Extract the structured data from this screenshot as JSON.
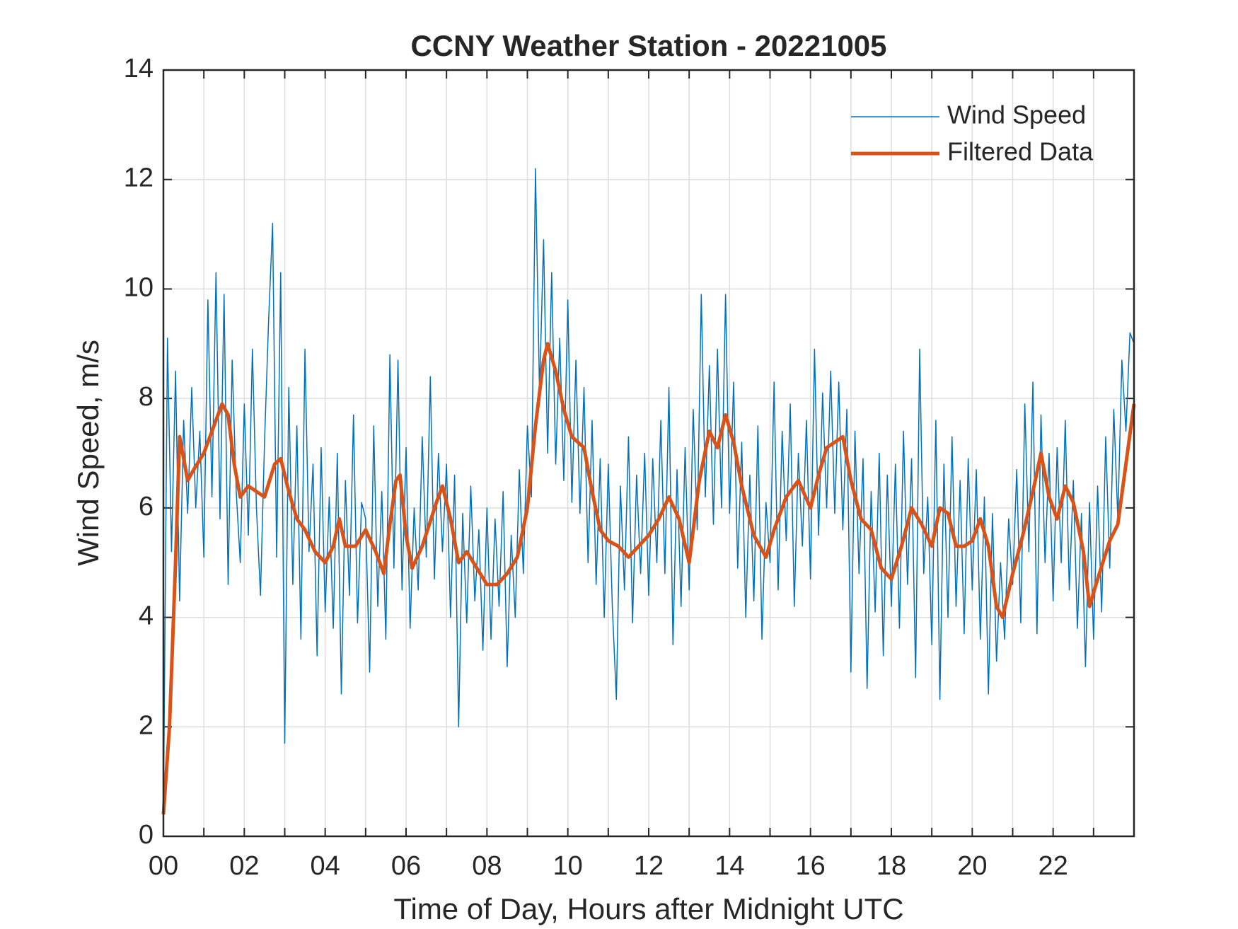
{
  "chart_data": {
    "type": "line",
    "title": "CCNY Weather Station - 20221005",
    "xlabel": "Time of Day, Hours after Midnight UTC",
    "ylabel": "Wind Speed, m/s",
    "xlim": [
      0,
      24
    ],
    "ylim": [
      0,
      14
    ],
    "xticks": [
      {
        "value": 0,
        "label": "00"
      },
      {
        "value": 2,
        "label": "02"
      },
      {
        "value": 4,
        "label": "04"
      },
      {
        "value": 6,
        "label": "06"
      },
      {
        "value": 8,
        "label": "08"
      },
      {
        "value": 10,
        "label": "10"
      },
      {
        "value": 12,
        "label": "12"
      },
      {
        "value": 14,
        "label": "14"
      },
      {
        "value": 16,
        "label": "16"
      },
      {
        "value": 18,
        "label": "18"
      },
      {
        "value": 20,
        "label": "20"
      },
      {
        "value": 22,
        "label": "22"
      }
    ],
    "x_minor_ticks": [
      1,
      3,
      5,
      7,
      9,
      11,
      13,
      15,
      17,
      19,
      21,
      23
    ],
    "yticks": [
      0,
      2,
      4,
      6,
      8,
      10,
      12,
      14
    ],
    "grid": true,
    "legend": "northeast",
    "series": [
      {
        "name": "Wind Speed",
        "color": "#0072BD",
        "width": 1.5,
        "x": [
          0,
          0.1,
          0.2,
          0.3,
          0.4,
          0.5,
          0.6,
          0.7,
          0.8,
          0.9,
          1,
          1.1,
          1.2,
          1.3,
          1.4,
          1.5,
          1.6,
          1.7,
          1.8,
          1.9,
          2,
          2.1,
          2.2,
          2.3,
          2.4,
          2.5,
          2.6,
          2.7,
          2.8,
          2.9,
          3,
          3.1,
          3.2,
          3.3,
          3.4,
          3.5,
          3.6,
          3.7,
          3.8,
          3.9,
          4,
          4.1,
          4.2,
          4.3,
          4.4,
          4.5,
          4.6,
          4.7,
          4.8,
          4.9,
          5,
          5.1,
          5.2,
          5.3,
          5.4,
          5.5,
          5.6,
          5.7,
          5.8,
          5.9,
          6,
          6.1,
          6.2,
          6.3,
          6.4,
          6.5,
          6.6,
          6.7,
          6.8,
          6.9,
          7,
          7.1,
          7.2,
          7.3,
          7.4,
          7.5,
          7.6,
          7.7,
          7.8,
          7.9,
          8,
          8.1,
          8.2,
          8.3,
          8.4,
          8.5,
          8.6,
          8.7,
          8.8,
          8.9,
          9,
          9.1,
          9.2,
          9.3,
          9.4,
          9.5,
          9.6,
          9.7,
          9.8,
          9.9,
          10,
          10.1,
          10.2,
          10.3,
          10.4,
          10.5,
          10.6,
          10.7,
          10.8,
          10.9,
          11,
          11.1,
          11.2,
          11.3,
          11.4,
          11.5,
          11.6,
          11.7,
          11.8,
          11.9,
          12,
          12.1,
          12.2,
          12.3,
          12.4,
          12.5,
          12.6,
          12.7,
          12.8,
          12.9,
          13,
          13.1,
          13.2,
          13.3,
          13.4,
          13.5,
          13.6,
          13.7,
          13.8,
          13.9,
          14,
          14.1,
          14.2,
          14.3,
          14.4,
          14.5,
          14.6,
          14.7,
          14.8,
          14.9,
          15,
          15.1,
          15.2,
          15.3,
          15.4,
          15.5,
          15.6,
          15.7,
          15.8,
          15.9,
          16,
          16.1,
          16.2,
          16.3,
          16.4,
          16.5,
          16.6,
          16.7,
          16.8,
          16.9,
          17,
          17.1,
          17.2,
          17.3,
          17.4,
          17.5,
          17.6,
          17.7,
          17.8,
          17.9,
          18,
          18.1,
          18.2,
          18.3,
          18.4,
          18.5,
          18.6,
          18.7,
          18.8,
          18.9,
          19,
          19.1,
          19.2,
          19.3,
          19.4,
          19.5,
          19.6,
          19.7,
          19.8,
          19.9,
          20,
          20.1,
          20.2,
          20.3,
          20.4,
          20.5,
          20.6,
          20.7,
          20.8,
          20.9,
          21,
          21.1,
          21.2,
          21.3,
          21.4,
          21.5,
          21.6,
          21.7,
          21.8,
          21.9,
          22,
          22.1,
          22.2,
          22.3,
          22.4,
          22.5,
          22.6,
          22.7,
          22.8,
          22.9,
          23,
          23.1,
          23.2,
          23.3,
          23.4,
          23.5,
          23.6,
          23.7,
          23.8,
          23.9,
          24
        ],
        "values": [
          0.4,
          9.1,
          5.2,
          8.5,
          4.3,
          7.6,
          5.9,
          8.2,
          6.0,
          7.4,
          5.1,
          9.8,
          6.2,
          10.3,
          5.8,
          9.9,
          4.6,
          8.7,
          6.3,
          5.0,
          7.9,
          5.5,
          8.9,
          6.0,
          4.4,
          7.2,
          9.4,
          11.2,
          5.1,
          10.3,
          1.7,
          8.2,
          4.6,
          7.5,
          3.6,
          8.9,
          5.2,
          6.8,
          3.3,
          7.1,
          4.1,
          6.2,
          3.8,
          7.0,
          2.6,
          6.5,
          4.4,
          7.7,
          3.9,
          6.1,
          5.8,
          3.0,
          7.5,
          4.2,
          6.3,
          3.6,
          8.8,
          4.9,
          8.7,
          4.5,
          7.1,
          3.8,
          6.0,
          4.5,
          7.3,
          5.1,
          8.4,
          4.7,
          7.0,
          5.2,
          6.8,
          4.0,
          6.6,
          2.0,
          5.9,
          3.9,
          6.4,
          4.3,
          5.6,
          3.4,
          6.0,
          3.6,
          5.8,
          4.2,
          6.3,
          3.1,
          5.5,
          4.0,
          6.7,
          4.8,
          7.5,
          6.2,
          12.2,
          8.1,
          10.9,
          7.0,
          10.3,
          6.8,
          9.1,
          6.5,
          9.8,
          6.1,
          8.7,
          5.9,
          8.2,
          5.0,
          7.6,
          4.6,
          6.9,
          4.0,
          6.8,
          4.2,
          2.5,
          6.4,
          4.5,
          7.3,
          3.9,
          6.6,
          4.8,
          7.0,
          4.4,
          6.9,
          5.0,
          7.6,
          4.8,
          8.2,
          3.5,
          6.7,
          4.2,
          7.1,
          4.5,
          7.8,
          5.6,
          9.9,
          6.2,
          8.6,
          5.7,
          8.9,
          6.0,
          9.9,
          5.9,
          8.3,
          4.9,
          7.2,
          4.0,
          6.6,
          4.3,
          7.5,
          3.6,
          6.1,
          5.0,
          8.3,
          4.5,
          7.4,
          5.4,
          7.9,
          4.2,
          7.0,
          5.3,
          7.6,
          4.7,
          8.9,
          5.5,
          8.1,
          6.0,
          8.5,
          5.9,
          8.3,
          5.6,
          7.8,
          3.0,
          7.4,
          4.8,
          6.9,
          2.7,
          6.3,
          4.1,
          7.0,
          3.3,
          6.6,
          4.2,
          6.8,
          3.8,
          7.4,
          4.6,
          6.9,
          2.9,
          8.9,
          4.8,
          6.2,
          3.5,
          7.6,
          2.5,
          6.8,
          4.0,
          7.3,
          4.2,
          6.5,
          3.7,
          6.9,
          4.5,
          6.7,
          3.6,
          6.2,
          2.6,
          5.9,
          3.2,
          5.0,
          3.6,
          5.8,
          4.6,
          6.7,
          3.9,
          7.9,
          5.2,
          8.3,
          3.7,
          7.7,
          5.0,
          7.0,
          4.3,
          7.1,
          5.0,
          7.6,
          4.5,
          6.5,
          3.8,
          5.9,
          3.1,
          6.1,
          3.6,
          6.4,
          4.1,
          7.3,
          4.9,
          7.8,
          5.8,
          8.7,
          7.4,
          9.2,
          9.0
        ]
      },
      {
        "name": "Filtered Data",
        "color": "#D95319",
        "width": 5,
        "x": [
          0,
          0.15,
          0.3,
          0.4,
          0.6,
          0.75,
          1,
          1.25,
          1.45,
          1.6,
          1.75,
          1.9,
          2.1,
          2.3,
          2.5,
          2.75,
          2.9,
          3.1,
          3.3,
          3.5,
          3.75,
          4,
          4.2,
          4.35,
          4.5,
          4.75,
          5,
          5.25,
          5.45,
          5.6,
          5.75,
          5.85,
          6,
          6.15,
          6.4,
          6.75,
          6.9,
          7.1,
          7.3,
          7.5,
          7.75,
          8,
          8.25,
          8.5,
          8.75,
          9,
          9.2,
          9.4,
          9.5,
          9.7,
          9.9,
          10.1,
          10.4,
          10.6,
          10.8,
          11,
          11.25,
          11.5,
          11.75,
          12,
          12.25,
          12.5,
          12.75,
          13,
          13.25,
          13.5,
          13.7,
          13.9,
          14.1,
          14.3,
          14.6,
          14.9,
          15.1,
          15.4,
          15.7,
          16,
          16.2,
          16.4,
          16.6,
          16.8,
          17,
          17.25,
          17.5,
          17.75,
          18,
          18.25,
          18.5,
          18.75,
          19,
          19.2,
          19.4,
          19.6,
          19.8,
          20,
          20.2,
          20.4,
          20.6,
          20.75,
          21,
          21.25,
          21.5,
          21.7,
          21.9,
          22.1,
          22.3,
          22.5,
          22.75,
          22.9,
          23.1,
          23.4,
          23.6,
          23.8,
          24
        ],
        "values": [
          0.4,
          2,
          5,
          7.3,
          6.5,
          6.7,
          7.0,
          7.5,
          7.9,
          7.7,
          6.8,
          6.2,
          6.4,
          6.3,
          6.2,
          6.8,
          6.9,
          6.3,
          5.8,
          5.6,
          5.2,
          5.0,
          5.3,
          5.8,
          5.3,
          5.3,
          5.6,
          5.2,
          4.8,
          5.7,
          6.5,
          6.6,
          5.5,
          4.9,
          5.3,
          6.1,
          6.4,
          5.8,
          5.0,
          5.2,
          4.9,
          4.6,
          4.6,
          4.8,
          5.1,
          6.0,
          7.5,
          8.7,
          9.0,
          8.5,
          7.8,
          7.3,
          7.1,
          6.3,
          5.6,
          5.4,
          5.3,
          5.1,
          5.3,
          5.5,
          5.8,
          6.2,
          5.8,
          5.0,
          6.5,
          7.4,
          7.1,
          7.7,
          7.2,
          6.4,
          5.5,
          5.1,
          5.6,
          6.2,
          6.5,
          6.0,
          6.6,
          7.1,
          7.2,
          7.3,
          6.5,
          5.8,
          5.6,
          4.9,
          4.7,
          5.3,
          6.0,
          5.7,
          5.3,
          6.0,
          5.9,
          5.3,
          5.3,
          5.4,
          5.8,
          5.3,
          4.2,
          4.0,
          4.8,
          5.5,
          6.3,
          7.0,
          6.2,
          5.8,
          6.4,
          6.1,
          5.2,
          4.2,
          4.7,
          5.4,
          5.7,
          6.8,
          7.9
        ]
      }
    ]
  }
}
